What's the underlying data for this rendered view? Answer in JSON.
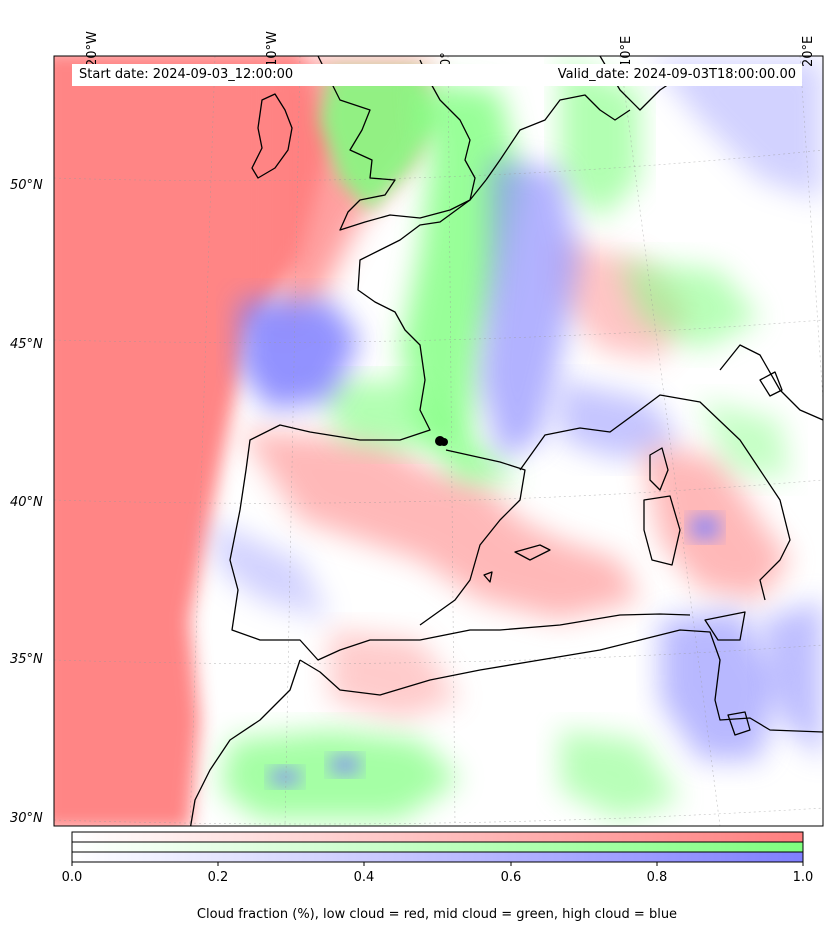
{
  "banner": {
    "start_date": "Start date: 2024-09-03_12:00:00",
    "valid_date": "Valid_date: 2024-09-03T18:00:00.00"
  },
  "axes": {
    "longitude_labels": [
      "20°W",
      "10°W",
      "0°",
      "10°E",
      "20°E"
    ],
    "latitude_labels": [
      "50°N",
      "45°N",
      "40°N",
      "35°N",
      "30°N"
    ]
  },
  "colorbar": {
    "ticks": [
      "0.0",
      "0.2",
      "0.4",
      "0.6",
      "0.8",
      "1.0"
    ],
    "range": [
      0.0,
      1.0
    ],
    "title": "Cloud fraction (%), low cloud = red, mid cloud = green, high cloud = blue",
    "colors": {
      "low": "#ff7f7f",
      "mid": "#7fff7f",
      "high": "#7f7fff"
    }
  },
  "map": {
    "projection": "conic, Western Europe / North Africa",
    "layers": [
      "low-cloud",
      "mid-cloud",
      "high-cloud",
      "coastlines",
      "gridlines"
    ],
    "grid": true
  }
}
